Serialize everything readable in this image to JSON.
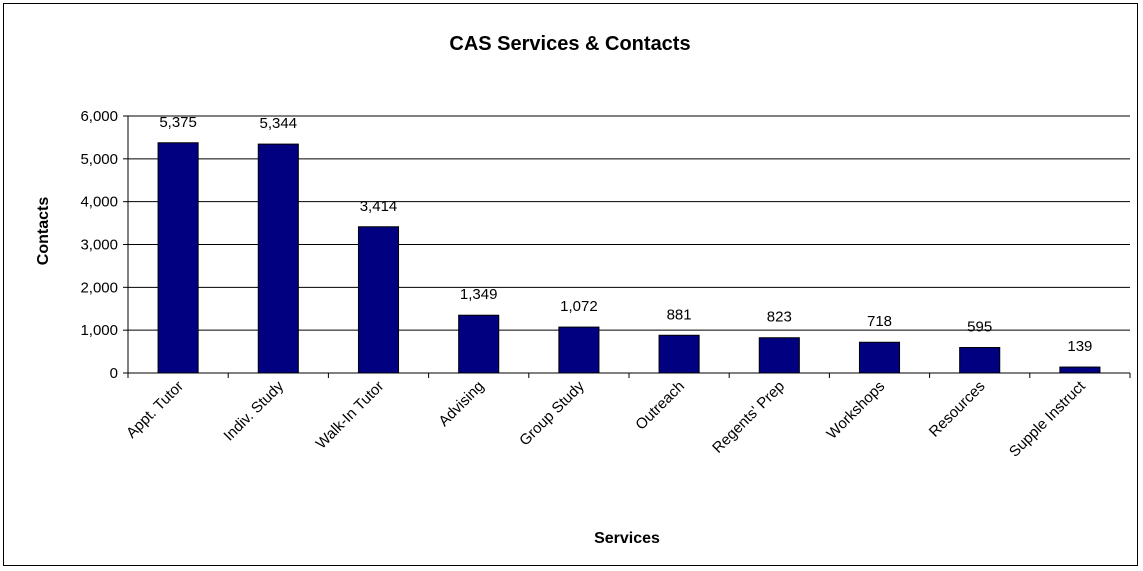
{
  "chart_data": {
    "type": "bar",
    "title": "CAS Services & Contacts",
    "xlabel": "Services",
    "ylabel": "Contacts",
    "categories": [
      "Appt. Tutor",
      "Indiv. Study",
      "Walk-In Tutor",
      "Advising",
      "Group Study",
      "Outreach",
      "Regents' Prep",
      "Workshops",
      "Resources",
      "Supple Instruct"
    ],
    "values": [
      5375,
      5344,
      3414,
      1349,
      1072,
      881,
      823,
      718,
      595,
      139
    ],
    "data_labels": [
      "5,375",
      "5,344",
      "3,414",
      "1,349",
      "1,072",
      "881",
      "823",
      "718",
      "595",
      "139"
    ],
    "ylim": [
      0,
      6000
    ],
    "yticks": [
      0,
      1000,
      2000,
      3000,
      4000,
      5000,
      6000
    ],
    "ytick_labels": [
      "0",
      "1,000",
      "2,000",
      "3,000",
      "4,000",
      "5,000",
      "6,000"
    ],
    "grid": true,
    "legend": "none",
    "colors": {
      "bar": "#000080",
      "bar_edge": "#000000",
      "grid": "#000000",
      "background": "#ffffff"
    }
  }
}
